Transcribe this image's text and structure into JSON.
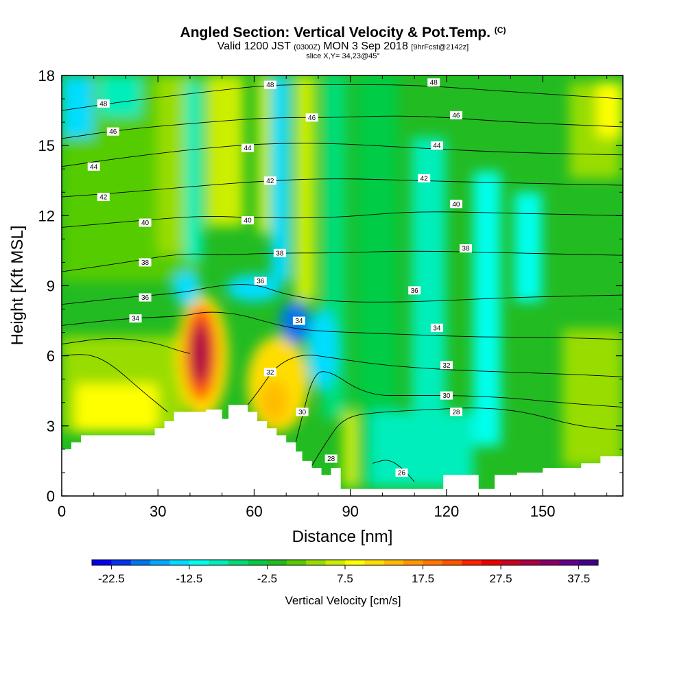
{
  "chart_data": {
    "type": "heatmap",
    "title": {
      "main": "Angled Section: Vertical Velocity & Pot.Temp.",
      "main_mark": "(C)",
      "valid_prefix": "Valid 1200 JST",
      "valid_utc": "(0300Z)",
      "valid_suffix": "MON 3 Sep 2018",
      "forecast": "[9hrFcst@2142z]",
      "slice": "slice X,Y= 34,23@45°"
    },
    "xlabel": "Distance [nm]",
    "ylabel": "Height [Kft MSL]",
    "xlim": [
      0,
      175
    ],
    "ylim": [
      0,
      18
    ],
    "xticks": [
      0,
      30,
      60,
      90,
      120,
      150
    ],
    "yticks": [
      0,
      3,
      6,
      9,
      12,
      15,
      18
    ],
    "colorbar": {
      "title": "Vertical Velocity [cm/s]",
      "min": -25,
      "max": 40,
      "step": 2.5,
      "tick_values": [
        -22.5,
        -12.5,
        -2.5,
        7.5,
        17.5,
        27.5,
        37.5
      ],
      "tick_labels": [
        "-22.5",
        "-12.5",
        "-2.5",
        "7.5",
        "17.5",
        "27.5",
        "37.5"
      ],
      "colors": [
        "#0000ee",
        "#0033ee",
        "#0077ee",
        "#00aaff",
        "#00ddff",
        "#00ffee",
        "#00eebb",
        "#00dd77",
        "#00cc44",
        "#22bb22",
        "#55cc00",
        "#99dd00",
        "#ccee00",
        "#ffff00",
        "#ffdd00",
        "#ffbb00",
        "#ff9900",
        "#ff7700",
        "#ff5500",
        "#ff2200",
        "#ee0000",
        "#cc0022",
        "#aa0044",
        "#880066",
        "#660088",
        "#440088"
      ]
    },
    "terrain": [
      [
        0,
        2
      ],
      [
        3,
        2
      ],
      [
        3,
        2.3
      ],
      [
        6,
        2.3
      ],
      [
        6,
        2.6
      ],
      [
        29,
        2.6
      ],
      [
        29,
        2.9
      ],
      [
        32,
        2.9
      ],
      [
        32,
        3.2
      ],
      [
        35,
        3.2
      ],
      [
        35,
        3.6
      ],
      [
        45,
        3.6
      ],
      [
        45,
        3.7
      ],
      [
        50,
        3.7
      ],
      [
        50,
        3.3
      ],
      [
        52,
        3.3
      ],
      [
        52,
        3.9
      ],
      [
        58,
        3.9
      ],
      [
        58,
        3.6
      ],
      [
        61,
        3.6
      ],
      [
        61,
        3.2
      ],
      [
        64,
        3.2
      ],
      [
        64,
        2.9
      ],
      [
        67,
        2.9
      ],
      [
        67,
        2.6
      ],
      [
        70,
        2.6
      ],
      [
        70,
        2.3
      ],
      [
        73,
        2.3
      ],
      [
        73,
        1.9
      ],
      [
        75,
        1.9
      ],
      [
        75,
        1.5
      ],
      [
        78,
        1.5
      ],
      [
        78,
        1.2
      ],
      [
        81,
        1.2
      ],
      [
        81,
        0.9
      ],
      [
        84,
        0.9
      ],
      [
        84,
        1.2
      ],
      [
        87,
        1.2
      ],
      [
        87,
        0.3
      ],
      [
        119,
        0.3
      ],
      [
        119,
        0.9
      ],
      [
        130,
        0.9
      ],
      [
        130,
        0.3
      ],
      [
        135,
        0.3
      ],
      [
        135,
        0.9
      ],
      [
        142,
        0.9
      ],
      [
        142,
        0.3
      ],
      [
        142,
        1.0
      ],
      [
        150,
        1.0
      ],
      [
        150,
        1.2
      ],
      [
        162,
        1.2
      ],
      [
        162,
        1.4
      ],
      [
        168,
        1.4
      ],
      [
        168,
        1.7
      ],
      [
        175,
        1.7
      ]
    ],
    "theta_contours": [
      {
        "value": 26,
        "label": "26",
        "points": [
          [
            97,
            1.4
          ],
          [
            102,
            1.6
          ],
          [
            107,
            1.1
          ],
          [
            110,
            0.6
          ]
        ]
      },
      {
        "value": 28,
        "label": "28",
        "points": [
          [
            78,
            1.3
          ],
          [
            82,
            2.2
          ],
          [
            88,
            3.4
          ],
          [
            100,
            3.6
          ],
          [
            115,
            3.7
          ],
          [
            130,
            3.8
          ],
          [
            145,
            3.6
          ],
          [
            160,
            3.0
          ],
          [
            175,
            2.8
          ]
        ]
      },
      {
        "value": 30,
        "label": "30",
        "points": [
          [
            0,
            6.0
          ],
          [
            8,
            6.1
          ],
          [
            15,
            5.7
          ],
          [
            25,
            4.5
          ],
          [
            33,
            3.6
          ]
        ]
      },
      {
        "value": 30,
        "label": "30",
        "points": [
          [
            73,
            2.3
          ],
          [
            75,
            3.4
          ],
          [
            78,
            5.0
          ],
          [
            82,
            5.5
          ],
          [
            95,
            4.3
          ],
          [
            110,
            4.3
          ],
          [
            125,
            4.3
          ],
          [
            140,
            4.2
          ],
          [
            155,
            4.0
          ],
          [
            175,
            3.8
          ]
        ]
      },
      {
        "value": 32,
        "label": "32",
        "points": [
          [
            0,
            6.5
          ],
          [
            15,
            6.8
          ],
          [
            28,
            6.6
          ],
          [
            37,
            6.2
          ],
          [
            40,
            6.1
          ]
        ]
      },
      {
        "value": 32,
        "label": "32",
        "points": [
          [
            58,
            3.9
          ],
          [
            62,
            4.6
          ],
          [
            67,
            5.6
          ],
          [
            75,
            6.1
          ],
          [
            85,
            5.9
          ],
          [
            100,
            5.6
          ],
          [
            120,
            5.4
          ],
          [
            140,
            5.3
          ],
          [
            160,
            5.2
          ],
          [
            175,
            5.1
          ]
        ]
      },
      {
        "value": 34,
        "label": "34",
        "points": [
          [
            0,
            7.3
          ],
          [
            20,
            7.6
          ],
          [
            38,
            7.7
          ],
          [
            45,
            7.9
          ],
          [
            55,
            7.8
          ],
          [
            65,
            7.4
          ],
          [
            75,
            7.1
          ],
          [
            90,
            7.0
          ],
          [
            110,
            6.9
          ],
          [
            130,
            6.8
          ],
          [
            150,
            6.8
          ],
          [
            175,
            6.7
          ]
        ]
      },
      {
        "value": 36,
        "label": "36",
        "points": [
          [
            0,
            8.2
          ],
          [
            20,
            8.5
          ],
          [
            38,
            8.7
          ],
          [
            48,
            9.0
          ],
          [
            60,
            9.1
          ],
          [
            70,
            8.6
          ],
          [
            85,
            8.3
          ],
          [
            110,
            8.3
          ],
          [
            140,
            8.5
          ],
          [
            175,
            8.6
          ]
        ]
      },
      {
        "value": 38,
        "label": "38",
        "points": [
          [
            0,
            9.6
          ],
          [
            20,
            10.0
          ],
          [
            38,
            10.4
          ],
          [
            50,
            10.3
          ],
          [
            65,
            10.4
          ],
          [
            85,
            10.4
          ],
          [
            110,
            10.5
          ],
          [
            140,
            10.4
          ],
          [
            175,
            10.3
          ]
        ]
      },
      {
        "value": 40,
        "label": "40",
        "points": [
          [
            0,
            11.5
          ],
          [
            25,
            11.8
          ],
          [
            45,
            12.0
          ],
          [
            60,
            11.9
          ],
          [
            85,
            11.9
          ],
          [
            110,
            12.2
          ],
          [
            140,
            12.1
          ],
          [
            175,
            12.0
          ]
        ]
      },
      {
        "value": 42,
        "label": "42",
        "points": [
          [
            0,
            12.8
          ],
          [
            20,
            13.0
          ],
          [
            45,
            13.3
          ],
          [
            65,
            13.5
          ],
          [
            85,
            13.6
          ],
          [
            110,
            13.5
          ],
          [
            140,
            13.4
          ],
          [
            175,
            13.3
          ]
        ]
      },
      {
        "value": 44,
        "label": "44",
        "points": [
          [
            0,
            14.1
          ],
          [
            20,
            14.5
          ],
          [
            45,
            14.9
          ],
          [
            65,
            15.1
          ],
          [
            85,
            15.1
          ],
          [
            110,
            14.9
          ],
          [
            140,
            14.7
          ],
          [
            175,
            14.6
          ]
        ]
      },
      {
        "value": 46,
        "label": "46",
        "points": [
          [
            0,
            15.3
          ],
          [
            20,
            15.7
          ],
          [
            45,
            16.0
          ],
          [
            65,
            16.2
          ],
          [
            85,
            16.2
          ],
          [
            110,
            16.3
          ],
          [
            140,
            16.0
          ],
          [
            175,
            15.8
          ]
        ]
      },
      {
        "value": 48,
        "label": "48",
        "points": [
          [
            0,
            16.5
          ],
          [
            20,
            16.9
          ],
          [
            45,
            17.3
          ],
          [
            65,
            17.6
          ],
          [
            85,
            17.6
          ],
          [
            110,
            17.6
          ],
          [
            140,
            17.3
          ],
          [
            175,
            17.0
          ]
        ]
      }
    ],
    "contour_labels": [
      {
        "text": "48",
        "x": 13,
        "y": 16.8
      },
      {
        "text": "46",
        "x": 16,
        "y": 15.6
      },
      {
        "text": "44",
        "x": 10,
        "y": 14.1
      },
      {
        "text": "42",
        "x": 13,
        "y": 12.8
      },
      {
        "text": "40",
        "x": 26,
        "y": 11.7
      },
      {
        "text": "38",
        "x": 26,
        "y": 10.0
      },
      {
        "text": "36",
        "x": 26,
        "y": 8.5
      },
      {
        "text": "34",
        "x": 23,
        "y": 7.6
      },
      {
        "text": "48",
        "x": 65,
        "y": 17.6
      },
      {
        "text": "46",
        "x": 78,
        "y": 16.2
      },
      {
        "text": "44",
        "x": 58,
        "y": 14.9
      },
      {
        "text": "42",
        "x": 65,
        "y": 13.5
      },
      {
        "text": "40",
        "x": 58,
        "y": 11.8
      },
      {
        "text": "38",
        "x": 68,
        "y": 10.4
      },
      {
        "text": "36",
        "x": 62,
        "y": 9.2
      },
      {
        "text": "34",
        "x": 74,
        "y": 7.5
      },
      {
        "text": "32",
        "x": 65,
        "y": 5.3
      },
      {
        "text": "30",
        "x": 75,
        "y": 3.6
      },
      {
        "text": "28",
        "x": 84,
        "y": 1.6
      },
      {
        "text": "26",
        "x": 106,
        "y": 1.0
      },
      {
        "text": "48",
        "x": 116,
        "y": 17.7
      },
      {
        "text": "46",
        "x": 123,
        "y": 16.3
      },
      {
        "text": "44",
        "x": 117,
        "y": 15.0
      },
      {
        "text": "42",
        "x": 113,
        "y": 13.6
      },
      {
        "text": "40",
        "x": 123,
        "y": 12.5
      },
      {
        "text": "38",
        "x": 126,
        "y": 10.6
      },
      {
        "text": "36",
        "x": 110,
        "y": 8.8
      },
      {
        "text": "34",
        "x": 117,
        "y": 7.2
      },
      {
        "text": "32",
        "x": 120,
        "y": 5.6
      },
      {
        "text": "30",
        "x": 120,
        "y": 4.3
      },
      {
        "text": "28",
        "x": 123,
        "y": 3.6
      }
    ]
  }
}
